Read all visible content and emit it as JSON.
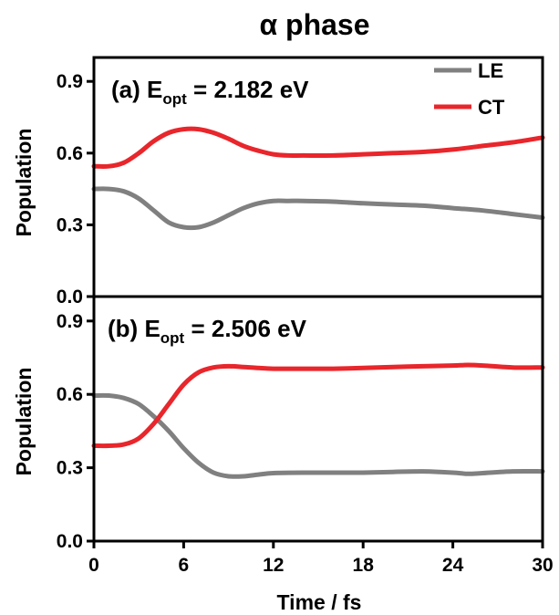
{
  "figure": {
    "title_symbol": "α",
    "title_text": " phase",
    "xlabel": "Time / fs"
  },
  "legend": {
    "items": [
      {
        "name": "LE",
        "color": "#808080"
      },
      {
        "name": "CT",
        "color": "#e8262b"
      }
    ]
  },
  "chart_data": [
    {
      "type": "line",
      "panel_label": "(a)",
      "energy_var": "E",
      "energy_sub": "opt",
      "energy_value": "= 2.182 eV",
      "xlabel": "",
      "ylabel": "Population",
      "xlim": [
        0,
        30
      ],
      "ylim": [
        0,
        1.0
      ],
      "x_ticks": [
        "0",
        "6",
        "12",
        "18",
        "24",
        "30"
      ],
      "y_ticks": [
        "0.0",
        "0.3",
        "0.6",
        "0.9"
      ],
      "grid": false,
      "legend_position": "top-right",
      "series": [
        {
          "name": "LE",
          "color": "#808080",
          "x": [
            0,
            1,
            2,
            3,
            4,
            5,
            6,
            7,
            8,
            9,
            10,
            11,
            12,
            13,
            14,
            16,
            18,
            20,
            22,
            24,
            26,
            28,
            30
          ],
          "y": [
            0.45,
            0.45,
            0.44,
            0.41,
            0.36,
            0.31,
            0.29,
            0.29,
            0.31,
            0.34,
            0.37,
            0.39,
            0.4,
            0.4,
            0.4,
            0.397,
            0.39,
            0.385,
            0.38,
            0.37,
            0.36,
            0.345,
            0.33
          ]
        },
        {
          "name": "CT",
          "color": "#e8262b",
          "x": [
            0,
            1,
            2,
            3,
            4,
            5,
            6,
            7,
            8,
            9,
            10,
            11,
            12,
            13,
            14,
            16,
            18,
            20,
            22,
            24,
            26,
            28,
            30
          ],
          "y": [
            0.545,
            0.545,
            0.56,
            0.6,
            0.65,
            0.685,
            0.7,
            0.7,
            0.685,
            0.66,
            0.63,
            0.61,
            0.595,
            0.59,
            0.59,
            0.59,
            0.595,
            0.6,
            0.605,
            0.615,
            0.63,
            0.645,
            0.665
          ]
        }
      ]
    },
    {
      "type": "line",
      "panel_label": "(b)",
      "energy_var": "E",
      "energy_sub": "opt",
      "energy_value": "= 2.506 eV",
      "xlabel": "Time / fs",
      "ylabel": "Population",
      "xlim": [
        0,
        30
      ],
      "ylim": [
        0,
        1.0
      ],
      "x_ticks": [
        "0",
        "6",
        "12",
        "18",
        "24",
        "30"
      ],
      "y_ticks": [
        "0.0",
        "0.3",
        "0.6",
        "0.9"
      ],
      "grid": false,
      "series": [
        {
          "name": "LE",
          "color": "#808080",
          "x": [
            0,
            1,
            2,
            3,
            4,
            5,
            6,
            7,
            8,
            9,
            10,
            11,
            12,
            14,
            16,
            18,
            20,
            22,
            24,
            25,
            26,
            28,
            30
          ],
          "y": [
            0.595,
            0.595,
            0.585,
            0.56,
            0.51,
            0.45,
            0.38,
            0.32,
            0.28,
            0.265,
            0.265,
            0.272,
            0.278,
            0.28,
            0.28,
            0.28,
            0.283,
            0.285,
            0.28,
            0.275,
            0.278,
            0.285,
            0.285
          ]
        },
        {
          "name": "CT",
          "color": "#e8262b",
          "x": [
            0,
            1,
            2,
            3,
            4,
            5,
            6,
            7,
            8,
            9,
            10,
            11,
            12,
            14,
            16,
            18,
            20,
            22,
            24,
            25,
            26,
            28,
            30
          ],
          "y": [
            0.39,
            0.39,
            0.395,
            0.42,
            0.48,
            0.56,
            0.64,
            0.69,
            0.71,
            0.715,
            0.712,
            0.708,
            0.705,
            0.705,
            0.705,
            0.708,
            0.712,
            0.715,
            0.718,
            0.72,
            0.718,
            0.71,
            0.71
          ]
        }
      ]
    }
  ]
}
